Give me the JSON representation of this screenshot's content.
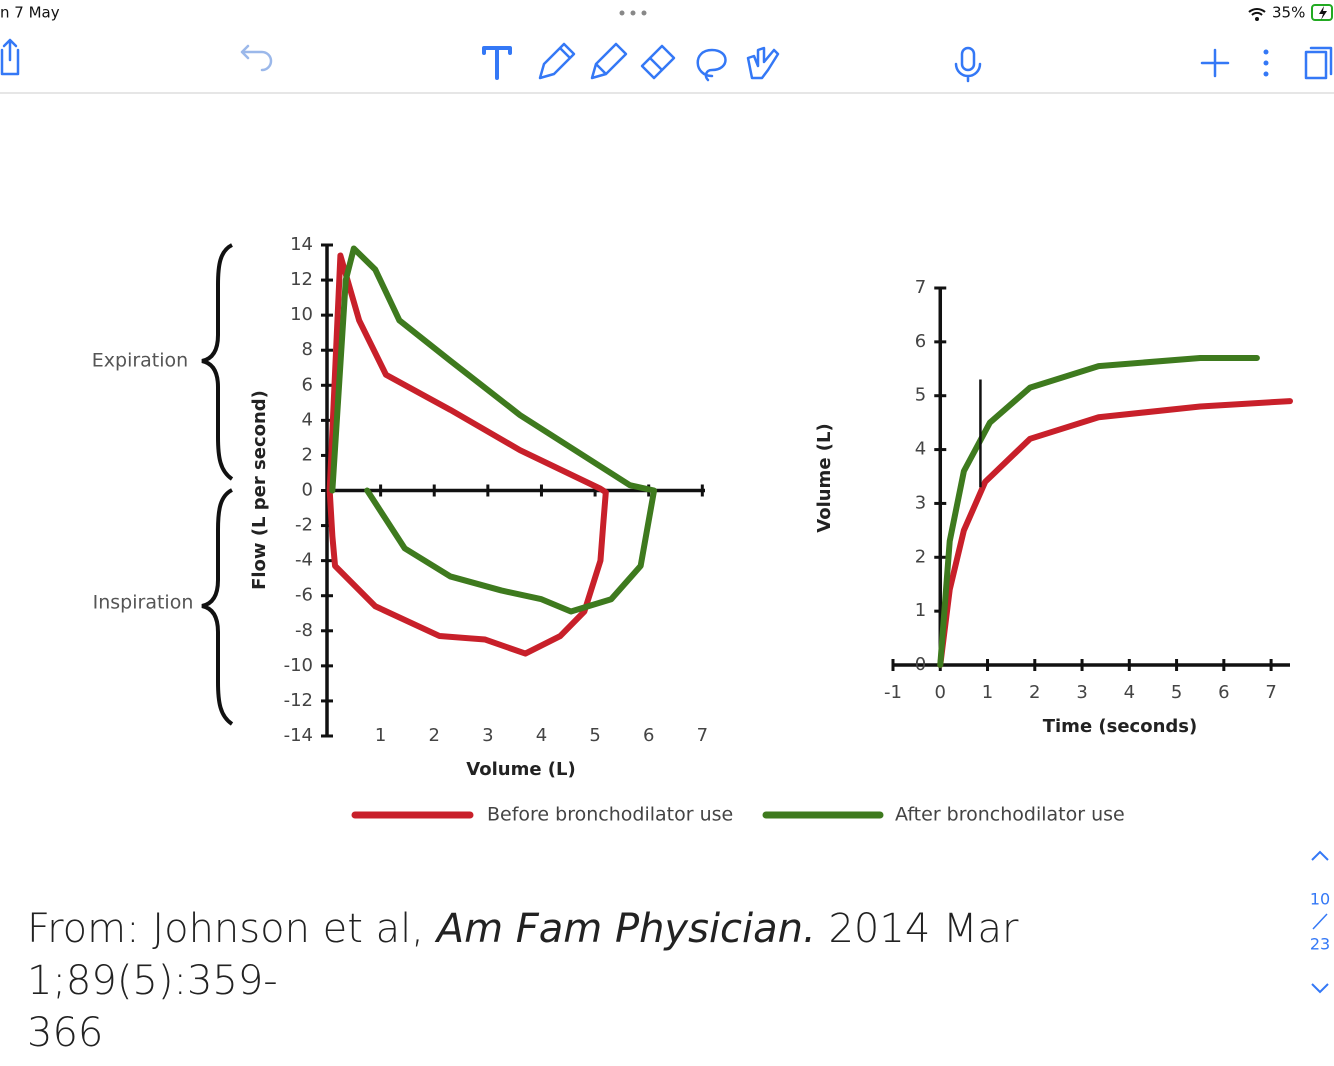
{
  "status_bar": {
    "date": "n 7 May",
    "battery": "35%"
  },
  "chart_data": [
    {
      "type": "line",
      "y_label": "Flow (L per second)",
      "x_label": "Volume (L)",
      "annotations": [
        "Expiration",
        "Inspiration"
      ],
      "xlim": [
        0,
        7.05
      ],
      "ylim": [
        -14,
        14
      ],
      "xticks": [
        1,
        2,
        3,
        4,
        5,
        6,
        7
      ],
      "yticks": [
        -14,
        -12,
        -10,
        -8,
        -6,
        -4,
        -2,
        0,
        2,
        4,
        6,
        8,
        10,
        12,
        14
      ],
      "series": [
        {
          "name": "Before bronchodilator use",
          "color": "#c8202a",
          "x": [
            0.1,
            0.05,
            0.25,
            0.6,
            1.1,
            2.3,
            3.6,
            5.1,
            5.2,
            5.15,
            5.1,
            4.8,
            4.35,
            3.7,
            2.95,
            2.1,
            0.9,
            0.15,
            0.1
          ],
          "values": [
            -2.6,
            0,
            13.4,
            9.7,
            6.6,
            4.6,
            2.3,
            0.1,
            -0.1,
            -2,
            -4,
            -6.9,
            -8.3,
            -9.3,
            -8.5,
            -8.3,
            -6.6,
            -4.3,
            -2.6
          ]
        },
        {
          "name": "After bronchodilator use",
          "color": "#3e7a1e",
          "x": [
            0.1,
            0.35,
            0.5,
            0.9,
            1.35,
            2.3,
            3.6,
            5.65,
            6.1,
            5.85,
            5.3,
            4.55,
            4.0,
            3.25,
            2.3,
            1.45,
            0.75
          ],
          "values": [
            0,
            12,
            13.8,
            12.6,
            9.7,
            7.4,
            4.3,
            0.3,
            0,
            -4.3,
            -6.2,
            -6.9,
            -6.2,
            -5.7,
            -4.9,
            -3.3,
            0
          ]
        }
      ]
    },
    {
      "type": "line",
      "y_label": "Volume (L)",
      "x_label": "Time (seconds)",
      "xlim": [
        -1,
        7.4
      ],
      "ylim": [
        0,
        7
      ],
      "xticks": [
        -1,
        0,
        1,
        2,
        3,
        4,
        5,
        6,
        7
      ],
      "yticks": [
        0,
        1,
        2,
        3,
        4,
        5,
        6,
        7
      ],
      "marker_x": 0.85,
      "marker_y": [
        3.3,
        5.3
      ],
      "series": [
        {
          "color": "#c8202a",
          "x": [
            0,
            0.2,
            0.5,
            0.95,
            1.9,
            3.35,
            5.5,
            7.4
          ],
          "values": [
            0,
            1.4,
            2.5,
            3.4,
            4.2,
            4.6,
            4.8,
            4.9
          ]
        },
        {
          "color": "#3e7a1e",
          "x": [
            0,
            0.2,
            0.5,
            1.05,
            1.9,
            3.35,
            5.5,
            6.7
          ],
          "values": [
            0,
            2.3,
            3.6,
            4.5,
            5.15,
            5.55,
            5.7,
            5.7
          ]
        }
      ]
    }
  ],
  "caption": {
    "prefix": "From: Johnson et al, ",
    "journal": "Am Fam Physician.",
    "suffix": " 2014 Mar 1;89(5):359-",
    "last_line": "366"
  },
  "page_indicator": {
    "current": "10",
    "total": "23"
  }
}
